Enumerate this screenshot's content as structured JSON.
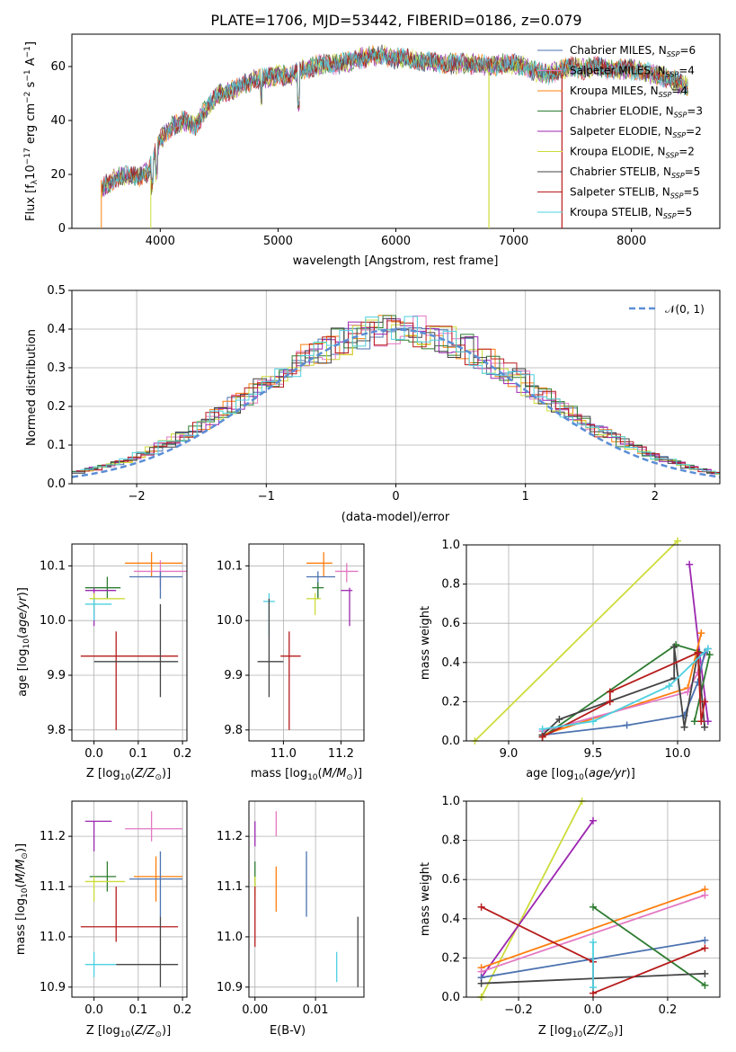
{
  "title": "PLATE=1706, MJD=53442, FIBERID=0186, z=0.079",
  "colors": [
    "#1f77b4",
    "#9467bd",
    "#ff7f0e",
    "#2ca02c",
    "#7b2fbf",
    "#cddc39",
    "#333333",
    "#b71c1c",
    "#80deea"
  ],
  "chart_data": [
    {
      "type": "line",
      "name": "spectrum",
      "xlabel": "wavelength [Angstrom, rest frame]",
      "ylabel": "Flux [f_λ 10^-17 erg cm^-2 s^-1 A^-1]",
      "xlim": [
        3250,
        8750
      ],
      "ylim": [
        0,
        72
      ],
      "xticks": [
        "4000",
        "5000",
        "6000",
        "7000",
        "8000"
      ],
      "yticks": [
        "0",
        "20",
        "40",
        "60"
      ],
      "legend_position": "top-right",
      "series": [
        {
          "name": "Chabrier MILES, N_SSP=6",
          "color": "#4c72b0"
        },
        {
          "name": "Salpeter MILES, N_SSP=4",
          "color": "#e377c2"
        },
        {
          "name": "Kroupa MILES, N_SSP=4",
          "color": "#ff7f0e"
        },
        {
          "name": "Chabrier ELODIE, N_SSP=3",
          "color": "#2e7d32"
        },
        {
          "name": "Salpeter ELODIE, N_SSP=2",
          "color": "#9c27b0"
        },
        {
          "name": "Kroupa ELODIE, N_SSP=2",
          "color": "#cddc39"
        },
        {
          "name": "Chabrier STELIB, N_SSP=5",
          "color": "#444444"
        },
        {
          "name": "Salpeter STELIB, N_SSP=5",
          "color": "#b71c1c"
        },
        {
          "name": "Kroupa STELIB, N_SSP=5",
          "color": "#4dd0e1"
        }
      ],
      "envelope": {
        "x": [
          3500,
          3600,
          3700,
          3800,
          3900,
          4000,
          4100,
          4200,
          4300,
          4400,
          4500,
          4600,
          4700,
          4800,
          4900,
          5000,
          5100,
          5200,
          5300,
          5400,
          5500,
          5600,
          5700,
          5800,
          5900,
          6000,
          6100,
          6200,
          6300,
          6400,
          6500,
          6600,
          6700,
          6800,
          6900,
          7000,
          7100,
          7200,
          7300,
          7400,
          7500,
          7600,
          7700,
          7800,
          7900,
          8000,
          8100,
          8200,
          8300,
          8400,
          8500
        ],
        "y": [
          15,
          18,
          20,
          19,
          21,
          33,
          38,
          40,
          38,
          45,
          50,
          51,
          53,
          55,
          56,
          57,
          56,
          59,
          60,
          61,
          61,
          62,
          63,
          64,
          64,
          63,
          63,
          62,
          62,
          61,
          61,
          61,
          61,
          60,
          61,
          61,
          60,
          58,
          57,
          59,
          60,
          59,
          60,
          59,
          59,
          59,
          58,
          57,
          56,
          54,
          52
        ]
      }
    },
    {
      "type": "line",
      "name": "residual-histogram",
      "xlabel": "(data-model)/error",
      "ylabel": "Normed distribution",
      "xlim": [
        -2.5,
        2.5
      ],
      "ylim": [
        0,
        0.5
      ],
      "xticks": [
        "−2",
        "−1",
        "0",
        "1",
        "2"
      ],
      "yticks": [
        "0.0",
        "0.1",
        "0.2",
        "0.3",
        "0.4",
        "0.5"
      ],
      "legend_position": "top-right",
      "legend": "𝒩(0, 1)"
    },
    {
      "type": "scatter",
      "name": "age-vs-Z",
      "xlabel": "Z [log10(Z/Z⊙)]",
      "ylabel": "age [log10(age/yr)]",
      "xlim": [
        -0.05,
        0.21
      ],
      "ylim": [
        9.78,
        10.14
      ],
      "xticks": [
        "0.0",
        "0.1",
        "0.2"
      ],
      "yticks": [
        "9.8",
        "9.9",
        "10.0",
        "10.1"
      ]
    },
    {
      "type": "scatter",
      "name": "age-vs-mass",
      "xlabel": "mass [log10(M/M⊙)]",
      "xlim": [
        10.88,
        11.28
      ],
      "ylim": [
        9.78,
        10.14
      ],
      "xticks": [
        "11.0",
        "11.2"
      ],
      "yticks": [
        "9.8",
        "9.9",
        "10.0",
        "10.1"
      ]
    },
    {
      "type": "line",
      "name": "massweight-vs-age",
      "xlabel": "age [log10(age/yr)]",
      "ylabel": "mass weight",
      "xlim": [
        8.75,
        10.25
      ],
      "ylim": [
        0,
        1.0
      ],
      "xticks": [
        "9.0",
        "9.5",
        "10.0"
      ],
      "yticks": [
        "0.0",
        "0.2",
        "0.4",
        "0.6",
        "0.8",
        "1.0"
      ]
    },
    {
      "type": "scatter",
      "name": "mass-vs-Z",
      "xlabel": "Z [log10(Z/Z⊙)]",
      "ylabel": "mass [log10(M/M⊙)]",
      "xlim": [
        -0.05,
        0.21
      ],
      "ylim": [
        10.88,
        11.27
      ],
      "xticks": [
        "0.0",
        "0.1",
        "0.2"
      ],
      "yticks": [
        "10.9",
        "11.0",
        "11.1",
        "11.2"
      ]
    },
    {
      "type": "scatter",
      "name": "mass-vs-EBV",
      "xlabel": "E(B-V)",
      "xlim": [
        -0.001,
        0.018
      ],
      "ylim": [
        10.88,
        11.27
      ],
      "xticks": [
        "0.00",
        "0.01"
      ],
      "yticks": [
        "10.9",
        "11.0",
        "11.1",
        "11.2"
      ]
    },
    {
      "type": "line",
      "name": "massweight-vs-Z",
      "xlabel": "Z [log10(Z/Z⊙)]",
      "ylabel": "mass weight",
      "xlim": [
        -0.34,
        0.34
      ],
      "ylim": [
        0,
        1.0
      ],
      "xticks": [
        "−0.2",
        "0.0",
        "0.2"
      ],
      "yticks": [
        "0.0",
        "0.2",
        "0.4",
        "0.6",
        "0.8",
        "1.0"
      ]
    }
  ],
  "points": {
    "ageZ": [
      {
        "c": "#ff7f0e",
        "x": 0.13,
        "y": 10.105,
        "xe": [
          0.07,
          0.2
        ],
        "ye": [
          10.08,
          10.125
        ]
      },
      {
        "c": "#e377c2",
        "x": 0.15,
        "y": 10.09,
        "xe": [
          0.09,
          0.21
        ],
        "ye": [
          10.06,
          10.11
        ]
      },
      {
        "c": "#4c72b0",
        "x": 0.15,
        "y": 10.08,
        "xe": [
          0.08,
          0.2
        ],
        "ye": [
          10.04,
          10.09
        ]
      },
      {
        "c": "#2e7d32",
        "x": 0.03,
        "y": 10.06,
        "xe": [
          -0.02,
          0.06
        ],
        "ye": [
          10.04,
          10.08
        ]
      },
      {
        "c": "#9c27b0",
        "x": 0.0,
        "y": 10.055,
        "xe": [
          -0.02,
          0.05
        ],
        "ye": [
          9.99,
          10.06
        ]
      },
      {
        "c": "#cddc39",
        "x": 0.0,
        "y": 10.04,
        "xe": [
          -0.01,
          0.07
        ],
        "ye": [
          10.02,
          10.05
        ]
      },
      {
        "c": "#4dd0e1",
        "x": 0.0,
        "y": 10.03,
        "xe": [
          -0.02,
          0.04
        ],
        "ye": [
          10.0,
          10.04
        ]
      },
      {
        "c": "#b71c1c",
        "x": 0.05,
        "y": 9.935,
        "xe": [
          -0.03,
          0.19
        ],
        "ye": [
          9.8,
          9.98
        ]
      },
      {
        "c": "#444444",
        "x": 0.15,
        "y": 9.925,
        "xe": [
          0.0,
          0.19
        ],
        "ye": [
          9.86,
          10.03
        ]
      }
    ],
    "ageMass": [
      {
        "c": "#ff7f0e",
        "x": 11.14,
        "y": 10.105,
        "xe": [
          11.08,
          11.17
        ],
        "ye": [
          10.08,
          10.125
        ]
      },
      {
        "c": "#e377c2",
        "x": 11.22,
        "y": 10.09,
        "xe": [
          11.18,
          11.26
        ],
        "ye": [
          10.07,
          10.105
        ]
      },
      {
        "c": "#4c72b0",
        "x": 11.12,
        "y": 10.08,
        "xe": [
          11.08,
          11.18
        ],
        "ye": [
          10.04,
          10.09
        ]
      },
      {
        "c": "#2e7d32",
        "x": 11.12,
        "y": 10.06,
        "xe": [
          11.1,
          11.14
        ],
        "ye": [
          10.04,
          10.07
        ]
      },
      {
        "c": "#9c27b0",
        "x": 11.23,
        "y": 10.055,
        "xe": [
          11.2,
          11.24
        ],
        "ye": [
          9.99,
          10.06
        ]
      },
      {
        "c": "#cddc39",
        "x": 11.11,
        "y": 10.04,
        "xe": [
          11.08,
          11.13
        ],
        "ye": [
          10.01,
          10.05
        ]
      },
      {
        "c": "#4dd0e1",
        "x": 10.95,
        "y": 10.035,
        "xe": [
          10.93,
          10.97
        ],
        "ye": [
          9.97,
          10.05
        ]
      },
      {
        "c": "#b71c1c",
        "x": 11.02,
        "y": 9.935,
        "xe": [
          10.99,
          11.06
        ],
        "ye": [
          9.8,
          9.98
        ]
      },
      {
        "c": "#444444",
        "x": 10.95,
        "y": 9.925,
        "xe": [
          10.91,
          11.0
        ],
        "ye": [
          9.86,
          10.04
        ]
      }
    ],
    "massZ": [
      {
        "c": "#9c27b0",
        "x": 0.0,
        "y": 11.23,
        "xe": [
          -0.02,
          0.04
        ],
        "ye": [
          11.17,
          11.23
        ]
      },
      {
        "c": "#e377c2",
        "x": 0.13,
        "y": 11.215,
        "xe": [
          0.07,
          0.2
        ],
        "ye": [
          11.19,
          11.25
        ]
      },
      {
        "c": "#2e7d32",
        "x": 0.03,
        "y": 11.12,
        "xe": [
          -0.01,
          0.05
        ],
        "ye": [
          11.09,
          11.15
        ]
      },
      {
        "c": "#ff7f0e",
        "x": 0.14,
        "y": 11.12,
        "xe": [
          0.09,
          0.2
        ],
        "ye": [
          11.07,
          11.16
        ]
      },
      {
        "c": "#4c72b0",
        "x": 0.15,
        "y": 11.115,
        "xe": [
          0.08,
          0.2
        ],
        "ye": [
          11.04,
          11.17
        ]
      },
      {
        "c": "#cddc39",
        "x": 0.0,
        "y": 11.11,
        "xe": [
          -0.02,
          0.07
        ],
        "ye": [
          11.07,
          11.12
        ]
      },
      {
        "c": "#b71c1c",
        "x": 0.05,
        "y": 11.02,
        "xe": [
          -0.03,
          0.19
        ],
        "ye": [
          10.99,
          11.1
        ]
      },
      {
        "c": "#4dd0e1",
        "x": 0.0,
        "y": 10.945,
        "xe": [
          -0.02,
          0.05
        ],
        "ye": [
          10.92,
          10.97
        ]
      },
      {
        "c": "#444444",
        "x": 0.15,
        "y": 10.945,
        "xe": [
          0.05,
          0.19
        ],
        "ye": [
          10.9,
          11.04
        ]
      }
    ],
    "massEBV": [
      {
        "c": "#9c27b0",
        "x": 0.0,
        "ye": [
          11.18,
          11.23
        ]
      },
      {
        "c": "#e377c2",
        "x": 0.0035,
        "ye": [
          11.2,
          11.25
        ]
      },
      {
        "c": "#2e7d32",
        "x": 0.0,
        "ye": [
          11.1,
          11.15
        ]
      },
      {
        "c": "#ff7f0e",
        "x": 0.0035,
        "ye": [
          11.05,
          11.14
        ]
      },
      {
        "c": "#4c72b0",
        "x": 0.0085,
        "ye": [
          11.04,
          11.17
        ]
      },
      {
        "c": "#cddc39",
        "x": 0.0,
        "ye": [
          11.08,
          11.12
        ]
      },
      {
        "c": "#b71c1c",
        "x": 0.0,
        "ye": [
          10.98,
          11.1
        ]
      },
      {
        "c": "#4dd0e1",
        "x": 0.0135,
        "ye": [
          10.91,
          10.97
        ]
      },
      {
        "c": "#444444",
        "x": 0.017,
        "ye": [
          10.9,
          11.04
        ]
      }
    ],
    "mwAge": [
      {
        "c": "#cddc39",
        "pts": [
          [
            8.8,
            0.0
          ],
          [
            10.0,
            1.02
          ]
        ]
      },
      {
        "c": "#9c27b0",
        "pts": [
          [
            10.07,
            0.9
          ],
          [
            10.13,
            0.45
          ],
          [
            10.18,
            0.1
          ]
        ]
      },
      {
        "c": "#2e7d32",
        "pts": [
          [
            9.2,
            0.02
          ],
          [
            9.99,
            0.49
          ],
          [
            10.19,
            0.44
          ],
          [
            10.1,
            0.1
          ]
        ]
      },
      {
        "c": "#ff7f0e",
        "pts": [
          [
            9.2,
            0.03
          ],
          [
            10.06,
            0.27
          ],
          [
            10.14,
            0.55
          ]
        ]
      },
      {
        "c": "#e377c2",
        "pts": [
          [
            9.2,
            0.05
          ],
          [
            10.06,
            0.25
          ],
          [
            10.12,
            0.35
          ],
          [
            10.18,
            0.47
          ]
        ]
      },
      {
        "c": "#4c72b0",
        "pts": [
          [
            9.2,
            0.03
          ],
          [
            9.7,
            0.08
          ],
          [
            10.04,
            0.13
          ],
          [
            10.12,
            0.3
          ],
          [
            10.16,
            0.45
          ]
        ]
      },
      {
        "c": "#444444",
        "pts": [
          [
            9.2,
            0.03
          ],
          [
            9.3,
            0.11
          ],
          [
            9.98,
            0.32
          ],
          [
            9.98,
            0.48
          ],
          [
            10.04,
            0.07
          ],
          [
            10.12,
            0.45
          ],
          [
            10.16,
            0.07
          ]
        ]
      },
      {
        "c": "#b71c1c",
        "pts": [
          [
            9.2,
            0.02
          ],
          [
            9.6,
            0.2
          ],
          [
            9.6,
            0.25
          ],
          [
            10.12,
            0.45
          ],
          [
            10.14,
            0.1
          ],
          [
            10.16,
            0.2
          ]
        ]
      },
      {
        "c": "#4dd0e1",
        "pts": [
          [
            9.2,
            0.06
          ],
          [
            9.5,
            0.1
          ],
          [
            9.95,
            0.28
          ],
          [
            10.18,
            0.47
          ]
        ]
      }
    ],
    "mwZ": [
      {
        "c": "#cddc39",
        "pts": [
          [
            -0.3,
            0.0
          ],
          [
            -0.3,
            0.0
          ],
          [
            -0.03,
            1.0
          ]
        ]
      },
      {
        "c": "#9c27b0",
        "pts": [
          [
            -0.3,
            0.1
          ],
          [
            0.0,
            0.9
          ]
        ]
      },
      {
        "c": "#ff7f0e",
        "pts": [
          [
            -0.3,
            0.15
          ],
          [
            0.3,
            0.55
          ]
        ]
      },
      {
        "c": "#e377c2",
        "pts": [
          [
            -0.3,
            0.13
          ],
          [
            0.3,
            0.52
          ]
        ]
      },
      {
        "c": "#4c72b0",
        "pts": [
          [
            -0.3,
            0.1
          ],
          [
            0.3,
            0.29
          ]
        ]
      },
      {
        "c": "#2e7d32",
        "pts": [
          [
            0.0,
            0.46
          ],
          [
            0.3,
            0.06
          ]
        ]
      },
      {
        "c": "#444444",
        "pts": [
          [
            -0.3,
            0.07
          ],
          [
            0.3,
            0.12
          ]
        ]
      },
      {
        "c": "#b71c1c",
        "pts": [
          [
            -0.3,
            0.46
          ],
          [
            0.0,
            0.18
          ],
          [
            0.0,
            0.02
          ],
          [
            0.3,
            0.25
          ]
        ]
      },
      {
        "c": "#4dd0e1",
        "pts": [
          [
            0.0,
            0.28
          ],
          [
            0.0,
            0.05
          ]
        ]
      }
    ]
  }
}
